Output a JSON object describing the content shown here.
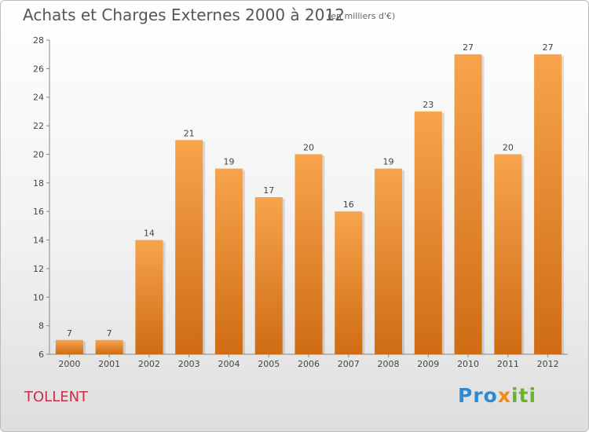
{
  "header": {
    "title": "Achats et Charges Externes 2000 à 2012",
    "subtitle": "(en milliers d'€)"
  },
  "commune": "TOLLENT",
  "logo": {
    "part1": "Pro",
    "part2": "x",
    "part3": "iti"
  },
  "colors": {
    "bar_top": "#f7a44d",
    "bar_bottom": "#cf6c14",
    "commune": "#c8304a"
  },
  "chart_data": {
    "type": "bar",
    "title": "Achats et Charges Externes 2000 à 2012",
    "subtitle": "(en milliers d'€)",
    "categories": [
      "2000",
      "2001",
      "2002",
      "2003",
      "2004",
      "2005",
      "2006",
      "2007",
      "2008",
      "2009",
      "2010",
      "2011",
      "2012"
    ],
    "values": [
      7,
      7,
      14,
      21,
      19,
      17,
      20,
      16,
      19,
      23,
      27,
      20,
      27
    ],
    "ylim": [
      6,
      28
    ],
    "yticks": [
      6,
      8,
      10,
      12,
      14,
      16,
      18,
      20,
      22,
      24,
      26,
      28
    ],
    "grid": false,
    "legend": "none"
  }
}
